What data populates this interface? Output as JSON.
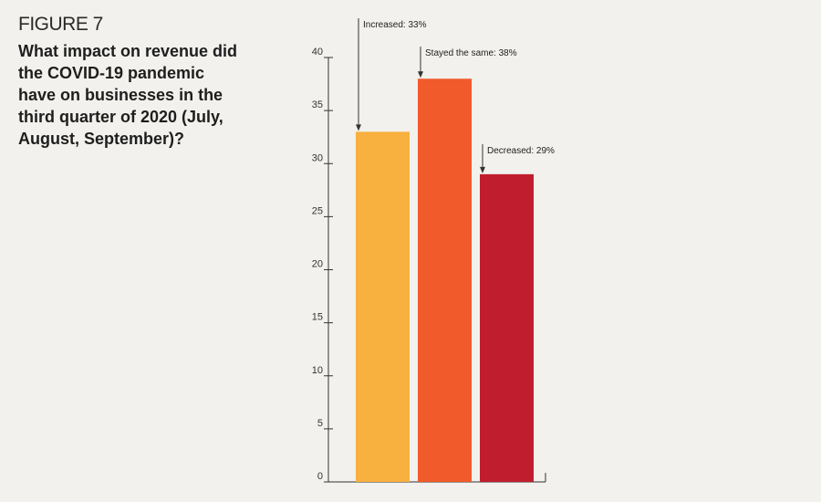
{
  "figure": {
    "label": "FIGURE 7",
    "title": "What impact on revenue did the COVID-19 pandemic have on businesses in the third quarter of 2020 (July, August, September)?"
  },
  "chart_data": {
    "type": "bar",
    "title": "What impact on revenue did the COVID-19 pandemic have on businesses in the third quarter of 2020 (July, August, September)?",
    "categories": [
      "Increased",
      "Stayed the same",
      "Decreased"
    ],
    "values": [
      33,
      38,
      29
    ],
    "data_labels": [
      "Increased: 33%",
      "Stayed the same: 38%",
      "Decreased: 29%"
    ],
    "colors": [
      "#f8b03f",
      "#f15a2b",
      "#c01e2e"
    ],
    "ylim": [
      0,
      40
    ],
    "yticks": [
      0,
      5,
      10,
      15,
      20,
      25,
      30,
      35,
      40
    ],
    "xlabel": "",
    "ylabel": "",
    "grid": false,
    "legend": "none"
  }
}
